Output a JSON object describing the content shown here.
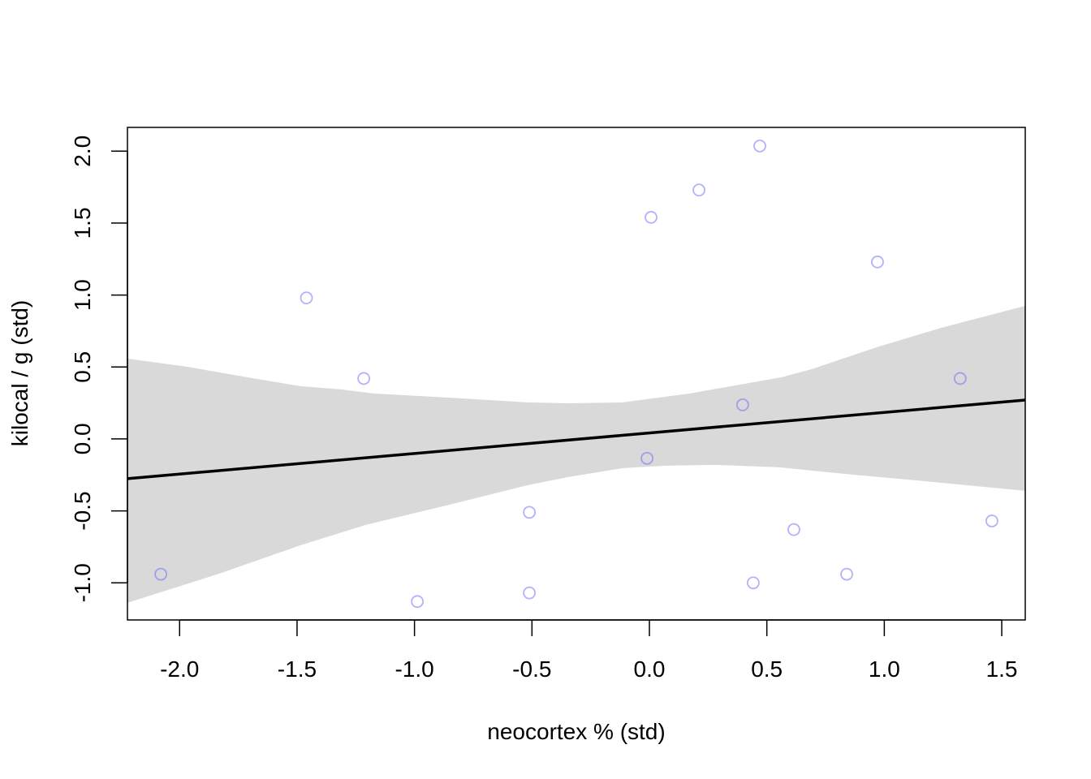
{
  "chart_data": {
    "type": "scatter",
    "title": "",
    "xlabel": "neocortex % (std)",
    "ylabel": "kilocal / g (std)",
    "xlim": [
      -2.222,
      1.6
    ],
    "ylim": [
      -1.258,
      2.165
    ],
    "grid": false,
    "x_ticks": [
      -2.0,
      -1.5,
      -1.0,
      -0.5,
      0.0,
      0.5,
      1.0,
      1.5
    ],
    "x_tick_labels": [
      "-2.0",
      "-1.5",
      "-1.0",
      "-0.5",
      "0.0",
      "0.5",
      "1.0",
      "1.5"
    ],
    "y_ticks": [
      -1.0,
      -0.5,
      0.0,
      0.5,
      1.0,
      1.5,
      2.0
    ],
    "y_tick_labels": [
      "-1.0",
      "-0.5",
      "0.0",
      "0.5",
      "1.0",
      "1.5",
      "2.0"
    ],
    "points": {
      "color": "#6464ff",
      "x": [
        -2.08,
        -1.46,
        -1.216,
        -0.988,
        -0.511,
        -0.511,
        -0.01,
        0.007,
        0.211,
        0.397,
        0.442,
        0.47,
        0.615,
        0.84,
        0.971,
        1.323,
        1.458
      ],
      "y": [
        -0.94,
        0.98,
        0.42,
        -1.13,
        -0.51,
        -1.07,
        -0.135,
        1.54,
        1.73,
        0.237,
        -1.0,
        2.036,
        -0.63,
        -0.94,
        1.23,
        0.42,
        -0.57
      ]
    },
    "mean_line": {
      "color": "#000000",
      "x": [
        -2.222,
        1.6
      ],
      "y": [
        -0.276,
        0.27
      ]
    },
    "interval_band": {
      "color": "#d9d9d9",
      "upper": {
        "x": [
          -2.222,
          -1.969,
          -1.693,
          -1.486,
          -1.313,
          -1.175,
          -0.864,
          -0.518,
          -0.346,
          -0.114,
          0.173,
          0.563,
          0.691,
          0.967,
          1.244,
          1.6
        ],
        "y": [
          0.558,
          0.502,
          0.423,
          0.367,
          0.344,
          0.316,
          0.288,
          0.254,
          0.248,
          0.254,
          0.316,
          0.429,
          0.485,
          0.637,
          0.773,
          0.925
        ]
      },
      "lower": {
        "x": [
          -2.222,
          -1.831,
          -1.486,
          -1.209,
          -0.864,
          -0.518,
          -0.346,
          -0.114,
          0.069,
          0.276,
          0.553,
          0.864,
          1.209,
          1.6
        ],
        "y": [
          -1.139,
          -0.936,
          -0.739,
          -0.598,
          -0.462,
          -0.321,
          -0.265,
          -0.203,
          -0.186,
          -0.18,
          -0.197,
          -0.248,
          -0.299,
          -0.361
        ]
      }
    }
  }
}
